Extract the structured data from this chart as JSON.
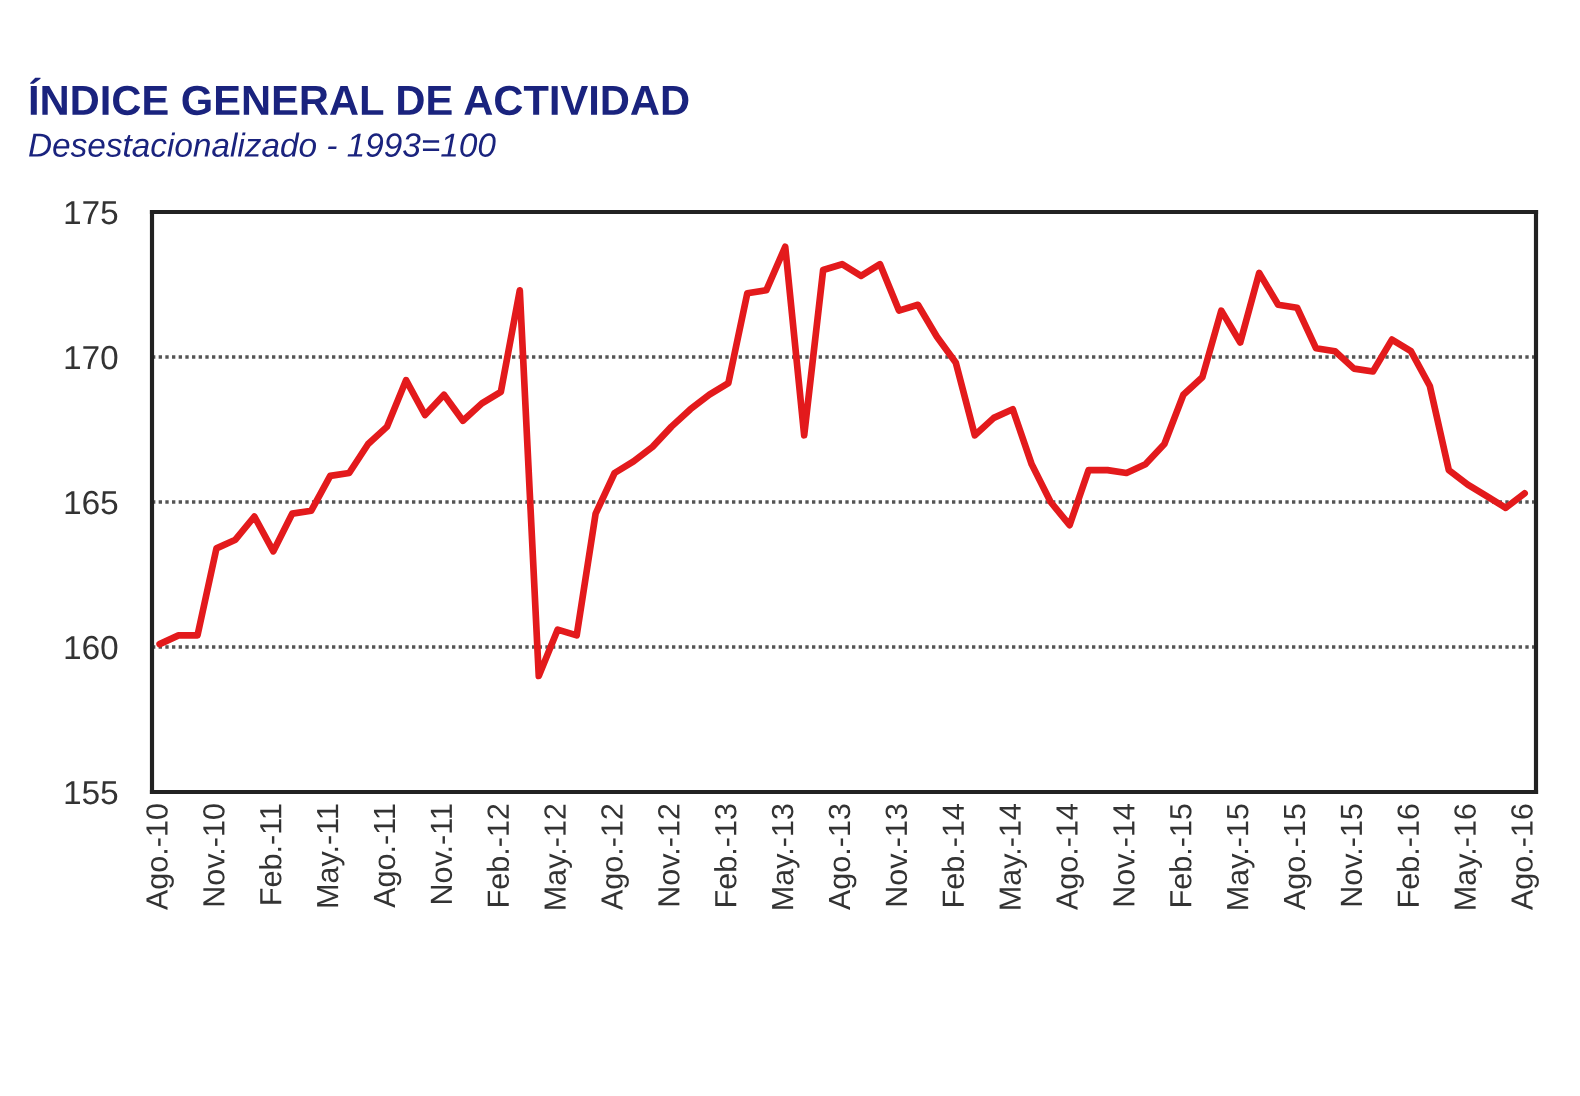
{
  "chart_data": {
    "type": "line",
    "title": "ÍNDICE GENERAL DE ACTIVIDAD",
    "subtitle": "Desestacionalizado - 1993=100",
    "categories": [
      "Ago.-10",
      null,
      null,
      "Nov.-10",
      null,
      null,
      "Feb.-11",
      null,
      null,
      "May.-11",
      null,
      null,
      "Ago.-11",
      null,
      null,
      "Nov.-11",
      null,
      null,
      "Feb.-12",
      null,
      null,
      "May.-12",
      null,
      null,
      "Ago.-12",
      null,
      null,
      "Nov.-12",
      null,
      null,
      "Feb.-13",
      null,
      null,
      "May.-13",
      null,
      null,
      "Ago.-13",
      null,
      null,
      "Nov.-13",
      null,
      null,
      "Feb.-14",
      null,
      null,
      "May.-14",
      null,
      null,
      "Ago.-14",
      null,
      null,
      "Nov.-14",
      null,
      null,
      "Feb.-15",
      null,
      null,
      "May.-15",
      null,
      null,
      "Ago.-15",
      null,
      null,
      "Nov.-15",
      null,
      null,
      "Feb.-16",
      null,
      null,
      "May.-16",
      null,
      null,
      "Ago.-16"
    ],
    "series": [
      {
        "color": "#e31a1c",
        "values": [
          160.1,
          160.4,
          160.4,
          163.4,
          163.7,
          164.5,
          163.3,
          164.6,
          164.7,
          165.9,
          166.0,
          167.0,
          167.6,
          169.2,
          168.0,
          168.7,
          167.8,
          168.4,
          168.8,
          172.3,
          159.0,
          160.6,
          160.4,
          164.6,
          166.0,
          166.4,
          166.9,
          167.6,
          168.2,
          168.7,
          169.1,
          172.2,
          172.3,
          173.8,
          167.3,
          173.0,
          173.2,
          172.8,
          173.2,
          171.6,
          171.8,
          170.7,
          169.8,
          167.3,
          167.9,
          168.2,
          166.3,
          165.0,
          164.2,
          166.1,
          166.1,
          166.0,
          166.3,
          167.0,
          168.7,
          169.3,
          171.6,
          170.5,
          172.9,
          171.8,
          171.7,
          170.3,
          170.2,
          169.6,
          169.5,
          170.6,
          170.2,
          169.0,
          166.1,
          165.6,
          165.2,
          164.8,
          165.3
        ]
      }
    ],
    "ylim": [
      155,
      175
    ],
    "yticks": [
      155,
      160,
      165,
      170,
      175
    ],
    "grid": "y",
    "marker": "none",
    "line_style": "solid",
    "legend": false
  }
}
